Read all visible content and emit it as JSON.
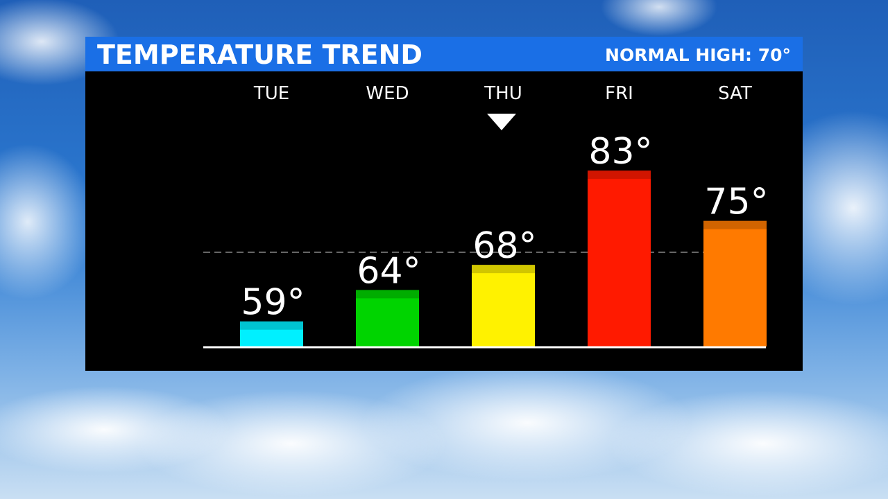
{
  "chart_data": {
    "type": "bar",
    "title": "TEMPERATURE TREND",
    "reference_line": {
      "value": 70,
      "label": "NORMAL HIGH: 70°"
    },
    "categories": [
      "TUE",
      "WED",
      "THU",
      "FRI",
      "SAT"
    ],
    "values": [
      59,
      64,
      68,
      83,
      75
    ],
    "value_labels": [
      "59°",
      "64°",
      "68°",
      "83°",
      "75°"
    ],
    "colors": [
      "#00f0ff",
      "#00d400",
      "#fff200",
      "#ff1a00",
      "#ff7a00"
    ],
    "ylim": [
      55,
      85
    ]
  }
}
